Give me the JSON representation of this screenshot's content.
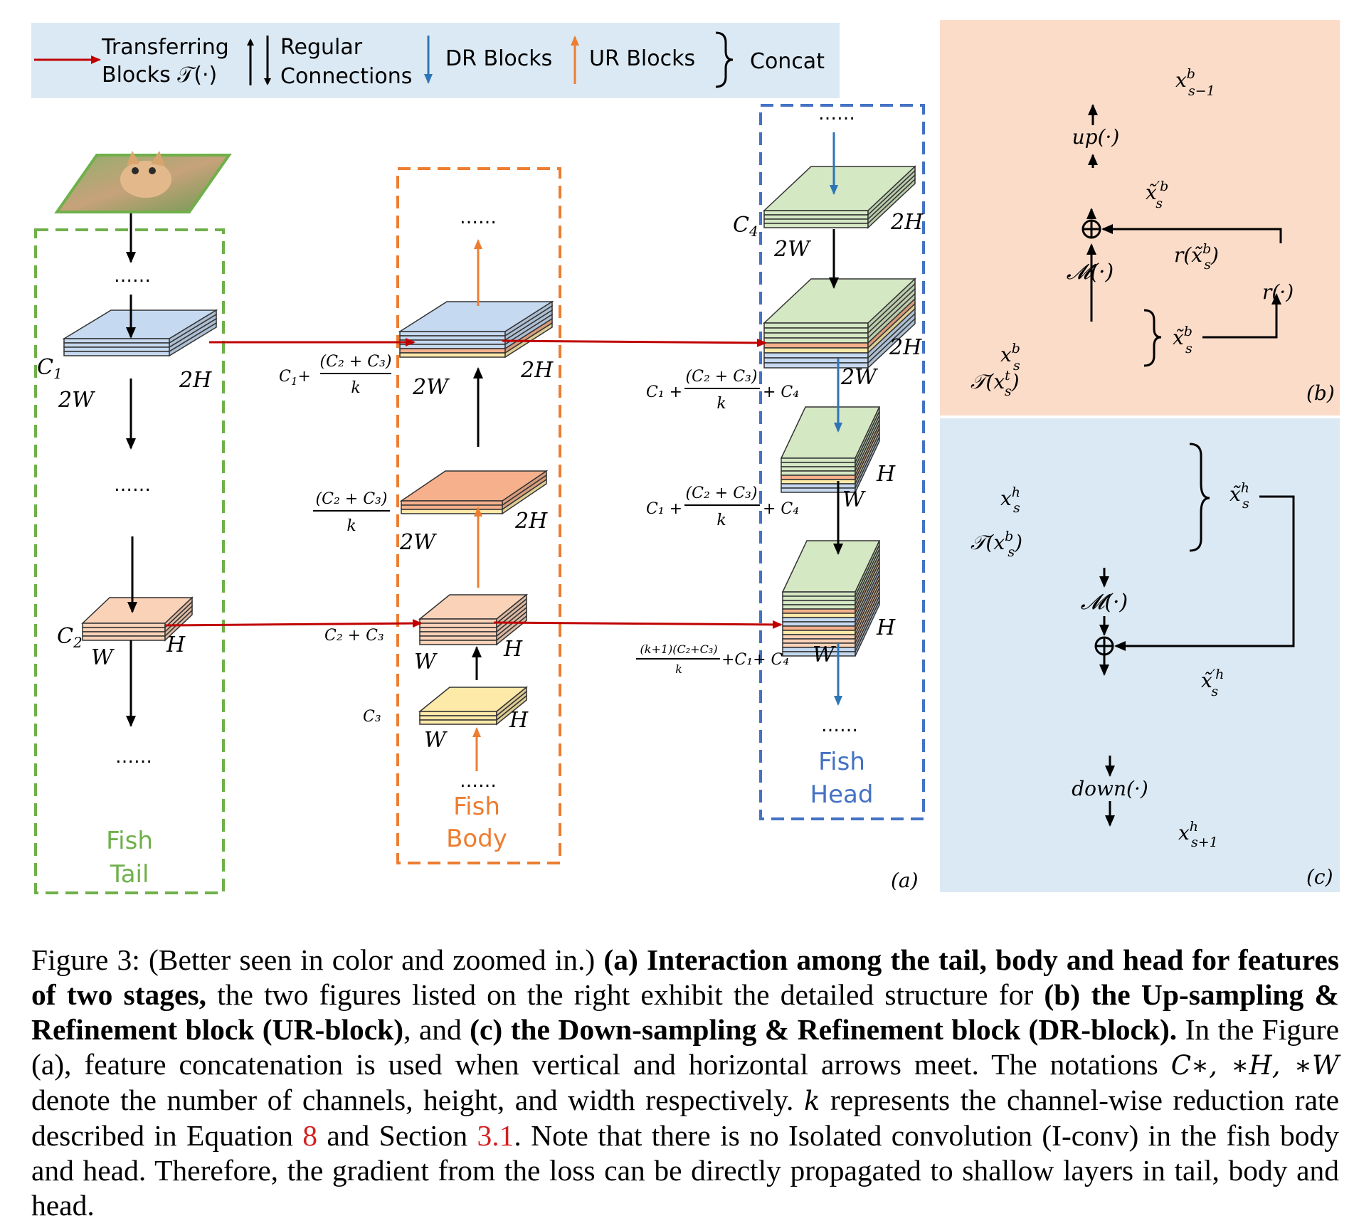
{
  "legend": {
    "transferring": "Transferring",
    "blocks_t": "Blocks 𝒯(·)",
    "regular": "Regular",
    "connections": "Connections",
    "dr_blocks": "DR Blocks",
    "ur_blocks": "UR Blocks",
    "concat": "Concat"
  },
  "tail": {
    "title_line1": "Fish",
    "title_line2": "Tail",
    "dots": "……",
    "c1": "C",
    "c1_sub": "1",
    "c2": "C",
    "c2_sub": "2",
    "w2": "2W",
    "h2": "2H",
    "w": "W",
    "h": "H"
  },
  "body": {
    "title_line1": "Fish",
    "title_line2": "Body",
    "dots": "……",
    "label_top_pre": "C",
    "label_top_sub": "1",
    "label_top_plus": "+",
    "frac_num": "(C₂ + C₃)",
    "frac_den": "k",
    "c2c3": "C₂ + C₃",
    "c3": "C₃",
    "w2": "2W",
    "h2": "2H",
    "w": "W",
    "h": "H"
  },
  "head": {
    "title_line1": "Fish",
    "title_line2": "Head",
    "dots": "……",
    "c4": "C",
    "c4_sub": "4",
    "label1_pre": "C₁ +",
    "label1_post": "+ C₄",
    "label3_frac_num": "(k+1)(C₂+C₃)",
    "label3_frac_den": "k",
    "label3_post": "+C₁+ C₄",
    "w2": "2W",
    "h2": "2H",
    "w": "W",
    "h": "H"
  },
  "panel_labels": {
    "a": "(a)",
    "b": "(b)",
    "c": "(c)"
  },
  "panel_b": {
    "top": "x",
    "top_sup": "b",
    "top_sub": "s−1",
    "up": "up(·)",
    "mid": "x̃",
    "mid_sup": "′b",
    "mid_sub": "s",
    "m": "𝓜(·)",
    "r_label": "r(x̃",
    "r_label_sup": "b",
    "r_label_sub": "s",
    "r_close": ")",
    "r_fn": "r(·)",
    "xsb": "x",
    "xsb_sup": "b",
    "xsb_sub": "s",
    "txst": "𝒯(x",
    "txst_sup": "t",
    "txst_sub": "s",
    "txst_close": ")",
    "tilde": "x̃",
    "tilde_sup": "b",
    "tilde_sub": "s"
  },
  "panel_c": {
    "xsh": "x",
    "xsh_sup": "h",
    "xsh_sub": "s",
    "txsb": "𝒯(x",
    "txsb_sup": "b",
    "txsb_sub": "s",
    "txsb_close": ")",
    "tilde": "x̃",
    "tilde_sup": "h",
    "tilde_sub": "s",
    "m": "𝓜(·)",
    "mid": "x̃",
    "mid_sup": "′h",
    "mid_sub": "s",
    "down": "down(·)",
    "bottom": "x",
    "bottom_sup": "h",
    "bottom_sub": "s+1"
  },
  "caption": {
    "p1": "Figure 3: (Better seen in color and zoomed in.) ",
    "b1": "(a) Interaction among the tail, body and head for features of two stages,",
    "p2": " the two figures listed on the right exhibit the detailed structure for ",
    "b2": "(b) the Up-sampling & Refinement block (UR-block)",
    "p3": ", and ",
    "b3": "(c) the Down-sampling & Refinement block (DR-block).",
    "p4": " In the Figure (a), feature concatenation is used when vertical and horizontal arrows meet. The notations ",
    "m1": "C∗, ∗H, ∗W",
    "p5": " denote the number of channels, height, and width respectively. ",
    "m2": "k",
    "p6": " represents the channel-wise reduction rate described in Equation ",
    "r1": "8",
    "p7": " and Section ",
    "r2": "3.1",
    "p8": ". Note that there is no Isolated convolution (I-conv) in the fish body and head. Therefore, the gradient from the loss can be directly propagated to shallow layers in tail, body and head."
  },
  "colors": {
    "legend_bg": "#dbe9f4",
    "panel_b_bg": "#fbdcc9",
    "panel_c_bg": "#dbe9f4",
    "tail_green": "#6fb04a",
    "body_orange": "#ed7d31",
    "head_blue": "#4472c4",
    "transfer_red": "#c00000",
    "dr_blue": "#2e75b6",
    "ur_orange": "#ed7d31",
    "layer_blue": "#c5d9f0",
    "layer_green": "#d5e8c4",
    "layer_orange": "#f6b08c",
    "layer_peach": "#fad2b8",
    "layer_yellow": "#fde9a8"
  }
}
